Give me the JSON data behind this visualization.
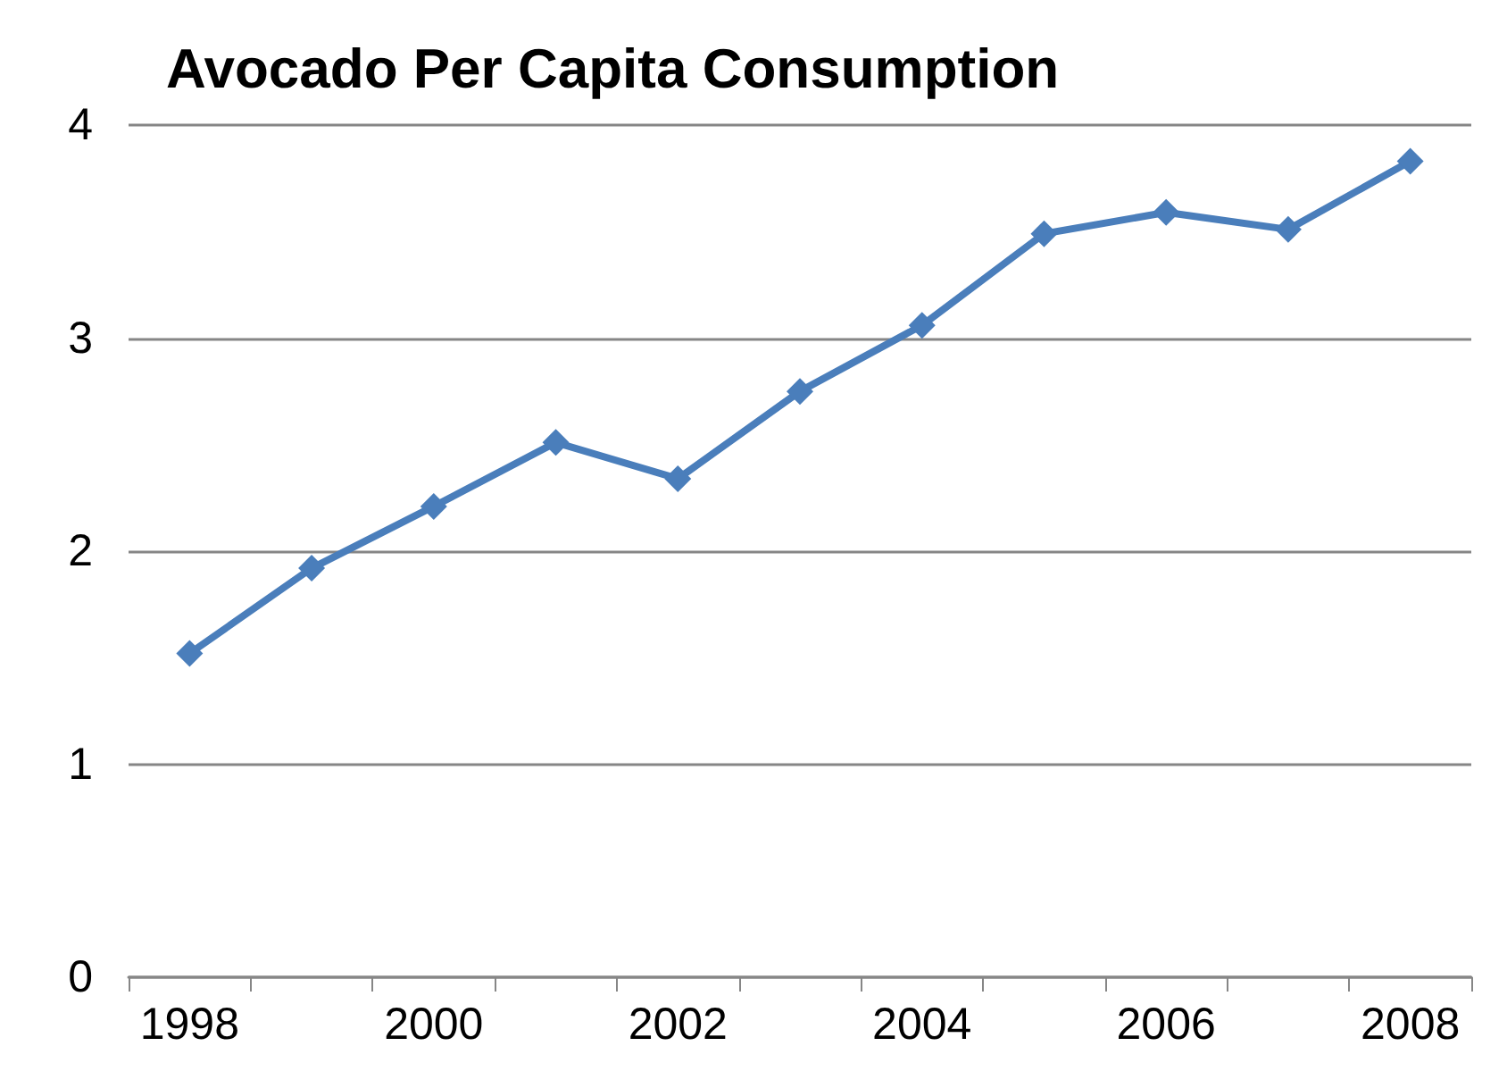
{
  "chart_data": {
    "type": "line",
    "title": "Avocado Per Capita Consumption",
    "categories": [
      "1998",
      null,
      "2000",
      null,
      "2002",
      null,
      "2004",
      null,
      "2006",
      null,
      "2008"
    ],
    "series": [
      {
        "color": "#4a7ebb",
        "values": [
          1.52,
          1.92,
          2.21,
          2.51,
          2.34,
          2.75,
          3.06,
          3.49,
          3.59,
          3.51,
          3.83
        ]
      }
    ],
    "ylim": [
      0,
      4
    ],
    "yticks": [
      0,
      1,
      2,
      3,
      4
    ],
    "grid": "y",
    "marker": "diamond",
    "line_style": "solid"
  }
}
